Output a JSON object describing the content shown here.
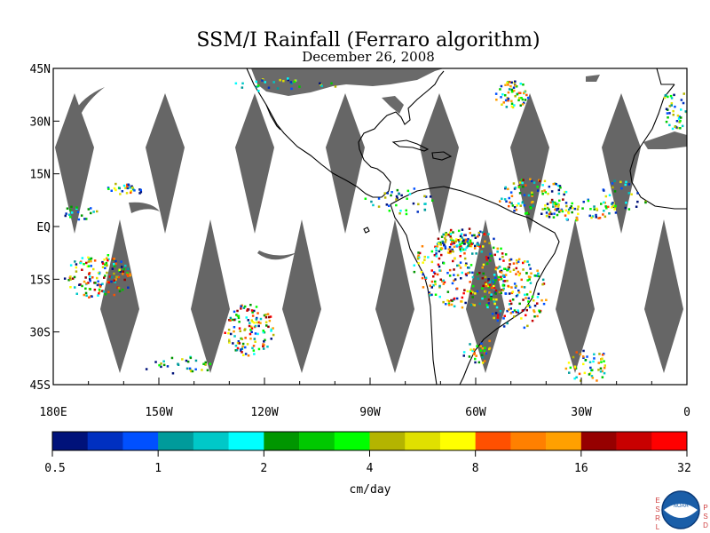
{
  "title": "SSM/I Rainfall (Ferraro algorithm)",
  "subtitle": "December 26, 2008",
  "map": {
    "lon_range": [
      -180,
      0
    ],
    "lat_range": [
      -45,
      45
    ],
    "lat_ticks": [
      {
        "v": 45,
        "label": "45N"
      },
      {
        "v": 30,
        "label": "30N"
      },
      {
        "v": 15,
        "label": "15N"
      },
      {
        "v": 0,
        "label": "EQ"
      },
      {
        "v": -15,
        "label": "15S"
      },
      {
        "v": -30,
        "label": "30S"
      },
      {
        "v": -45,
        "label": "45S"
      }
    ],
    "lon_ticks": [
      {
        "v": -180,
        "label": "180E"
      },
      {
        "v": -150,
        "label": "150W"
      },
      {
        "v": -120,
        "label": "120W"
      },
      {
        "v": -90,
        "label": "90W"
      },
      {
        "v": -60,
        "label": "60W"
      },
      {
        "v": -30,
        "label": "30W"
      },
      {
        "v": 0,
        "label": "0"
      }
    ],
    "gap_color": "#666666",
    "coast_color": "#000000"
  },
  "colorbar": {
    "unit_label": "cm/day",
    "boundary_labels": [
      "0.5",
      "1",
      "2",
      "4",
      "8",
      "16",
      "32"
    ],
    "colors": [
      "#00127a",
      "#0030c0",
      "#0050ff",
      "#009b9b",
      "#00c8c8",
      "#00ffff",
      "#009600",
      "#00c800",
      "#00ff00",
      "#b4b400",
      "#e0e000",
      "#ffff00",
      "#ff5000",
      "#ff8000",
      "#ffa000",
      "#960000",
      "#c80000",
      "#ff0000"
    ]
  },
  "logo": {
    "left_letters": [
      "E",
      "S",
      "R",
      "L"
    ],
    "right_letters": [
      "P",
      "S",
      "D"
    ],
    "badge": "NOAA"
  }
}
